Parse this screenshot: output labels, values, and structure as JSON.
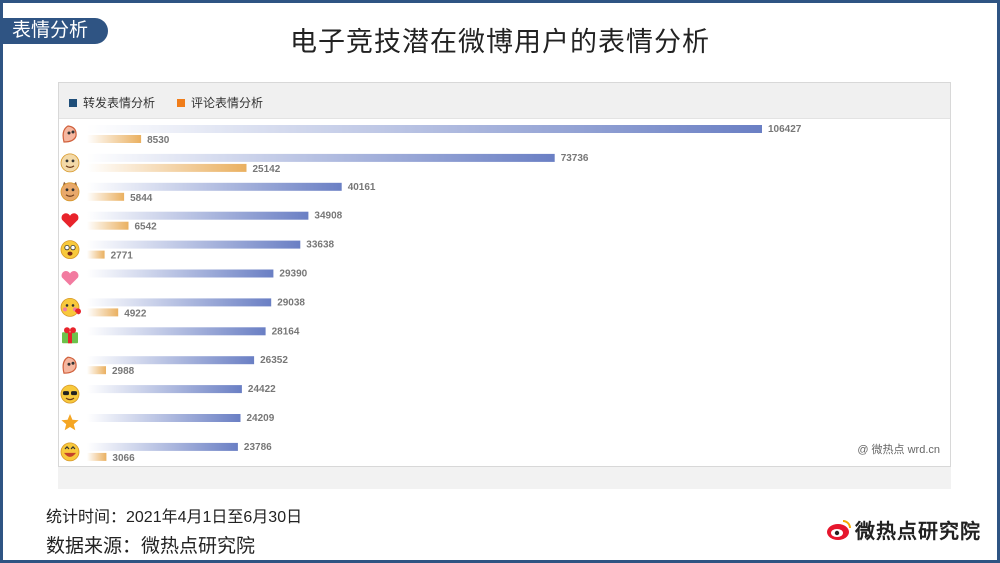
{
  "section_tab": "表情分析",
  "title": "电子竞技潜在微博用户的表情分析",
  "legend": [
    {
      "label": "转发表情分析",
      "color": "#1f4e79"
    },
    {
      "label": "评论表情分析",
      "color": "#f07d1a"
    }
  ],
  "watermark": "@ 微热点  wrd.cn",
  "stat_time": "统计时间：2021年4月1日至6月30日",
  "source": "数据来源：微热点研究院",
  "brand": "微热点研究院",
  "colors": {
    "repost": "#6a7fc4",
    "comment": "#eab060",
    "frame": "#2f5483"
  },
  "chart_data": {
    "type": "bar",
    "orientation": "horizontal",
    "categories": [
      "ROFL",
      "doge",
      "cat",
      "heart",
      "scared",
      "love",
      "blush",
      "gift",
      "shy",
      "cool",
      "star",
      "laugh"
    ],
    "category_icons": [
      "laughing-face-icon",
      "doge-icon",
      "cat-face-icon",
      "red-heart-icon",
      "scared-face-icon",
      "pink-heart-icon",
      "blush-face-icon",
      "gift-icon",
      "shy-face-icon",
      "sunglasses-face-icon",
      "star-icon",
      "grin-face-icon"
    ],
    "series": [
      {
        "name": "转发表情分析",
        "values": [
          106427,
          73736,
          40161,
          34908,
          33638,
          29390,
          29038,
          28164,
          26352,
          24422,
          24209,
          23786
        ]
      },
      {
        "name": "评论表情分析",
        "values": [
          8530,
          25142,
          5844,
          6542,
          2771,
          null,
          4922,
          null,
          2988,
          null,
          null,
          3066
        ]
      }
    ],
    "xlim": [
      0,
      120000
    ],
    "grid": false,
    "legend_position": "top-left"
  }
}
